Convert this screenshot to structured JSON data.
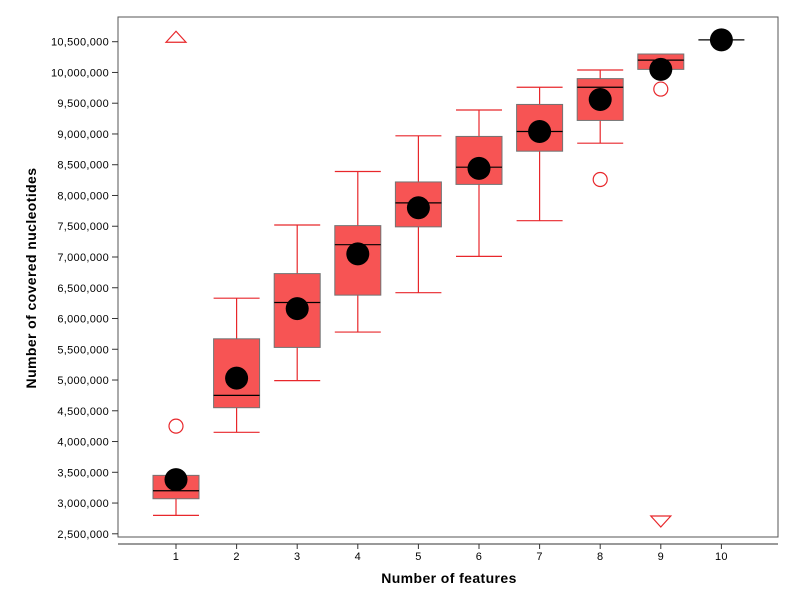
{
  "chart_data": {
    "type": "box",
    "xlabel": "Number of features",
    "ylabel": "Number of covered nucleotides",
    "ylim": [
      2400000,
      10900000
    ],
    "yticks": [
      2500000,
      3000000,
      3500000,
      4000000,
      4500000,
      5000000,
      5500000,
      6000000,
      6500000,
      7000000,
      7500000,
      8000000,
      8500000,
      9000000,
      9500000,
      10000000,
      10500000
    ],
    "ytick_labels": [
      "2,500,000",
      "3,000,000",
      "3,500,000",
      "4,000,000",
      "4,500,000",
      "5,000,000",
      "5,500,000",
      "6,000,000",
      "6,500,000",
      "7,000,000",
      "7,500,000",
      "8,000,000",
      "8,500,000",
      "9,000,000",
      "9,500,000",
      "10,000,000",
      "10,500,000"
    ],
    "categories": [
      "1",
      "2",
      "3",
      "4",
      "5",
      "6",
      "7",
      "8",
      "9",
      "10"
    ],
    "boxes": [
      {
        "category": "1",
        "whisker_low": 2800000,
        "q1": 3070000,
        "median": 3200000,
        "q3": 3450000,
        "whisker_high": 3450000,
        "mean": 3380000,
        "outliers": [
          4250000
        ]
      },
      {
        "category": "2",
        "whisker_low": 4150000,
        "q1": 4550000,
        "median": 4750000,
        "q3": 5670000,
        "whisker_high": 6330000,
        "mean": 5030000,
        "outliers": []
      },
      {
        "category": "3",
        "whisker_low": 4990000,
        "q1": 5530000,
        "median": 6260000,
        "q3": 6730000,
        "whisker_high": 7520000,
        "mean": 6160000,
        "outliers": []
      },
      {
        "category": "4",
        "whisker_low": 5780000,
        "q1": 6380000,
        "median": 7200000,
        "q3": 7510000,
        "whisker_high": 8390000,
        "mean": 7050000,
        "outliers": []
      },
      {
        "category": "5",
        "whisker_low": 6420000,
        "q1": 7490000,
        "median": 7880000,
        "q3": 8220000,
        "whisker_high": 8970000,
        "mean": 7800000,
        "outliers": []
      },
      {
        "category": "6",
        "whisker_low": 7010000,
        "q1": 8180000,
        "median": 8460000,
        "q3": 8960000,
        "whisker_high": 9390000,
        "mean": 8440000,
        "outliers": []
      },
      {
        "category": "7",
        "whisker_low": 7590000,
        "q1": 8720000,
        "median": 9040000,
        "q3": 9480000,
        "whisker_high": 9760000,
        "mean": 9040000,
        "outliers": []
      },
      {
        "category": "8",
        "whisker_low": 8850000,
        "q1": 9220000,
        "median": 9760000,
        "q3": 9900000,
        "whisker_high": 10040000,
        "mean": 9560000,
        "outliers": [
          8260000
        ]
      },
      {
        "category": "9",
        "whisker_low": 10050000,
        "q1": 10050000,
        "median": 10200000,
        "q3": 10300000,
        "whisker_high": 10300000,
        "mean": 10050000,
        "outliers": [
          9730000
        ]
      },
      {
        "category": "10",
        "whisker_low": 10530000,
        "q1": 10530000,
        "median": 10530000,
        "q3": 10530000,
        "whisker_high": 10530000,
        "mean": 10530000,
        "outliers": []
      }
    ],
    "extreme_markers": [
      {
        "category": "1",
        "shape": "triangle-up",
        "value": 10580000
      },
      {
        "category": "9",
        "shape": "triangle-down",
        "value": 2700000
      }
    ],
    "grid": false,
    "legend": "none",
    "colors": {
      "box_fill": "#f75454",
      "box_stroke": "#737373",
      "whisker": "#e8272b",
      "outlier": "#e8272b",
      "mean_marker": "#000000",
      "median_line": "#000000",
      "frame": "#555555"
    }
  }
}
